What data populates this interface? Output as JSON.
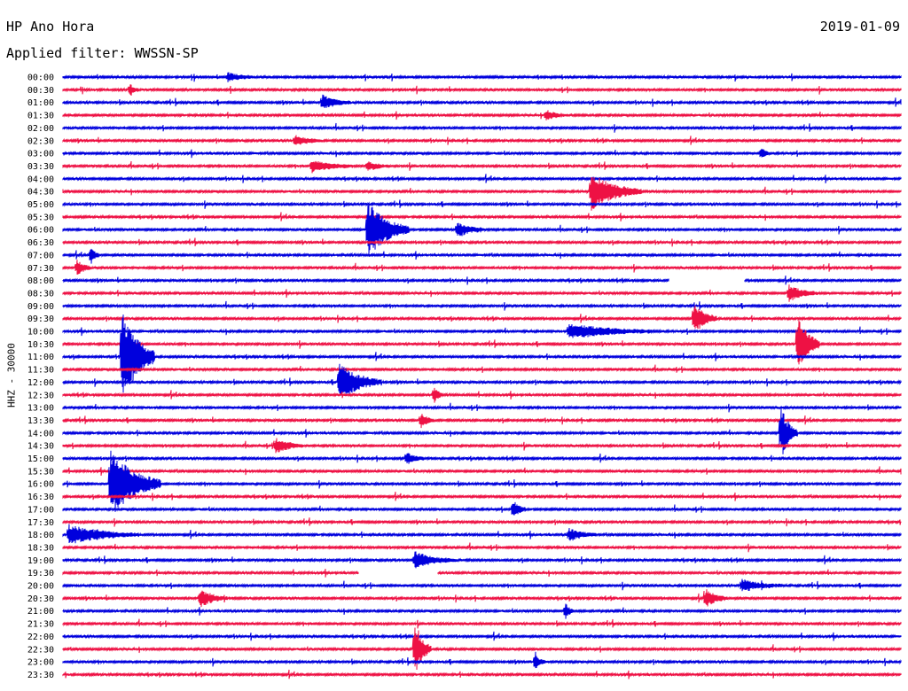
{
  "header": {
    "station": "HP Ano Hora",
    "filter": "Applied filter: WWSSN-SP",
    "date": "2019-01-09"
  },
  "chart_data": {
    "type": "line",
    "title": "HP Ano Hora",
    "subtitle": "Applied filter: WWSSN-SP",
    "date": "2019-01-09",
    "channel_label": "HHZ - 30000",
    "trace_minutes": 30,
    "colors": [
      "#0000dd",
      "#ee1144"
    ],
    "rows": [
      "00:00",
      "00:30",
      "01:00",
      "01:30",
      "02:00",
      "02:30",
      "03:00",
      "03:30",
      "04:00",
      "04:30",
      "05:00",
      "05:30",
      "06:00",
      "06:30",
      "07:00",
      "07:30",
      "08:00",
      "08:30",
      "09:00",
      "09:30",
      "10:00",
      "10:30",
      "11:00",
      "11:30",
      "12:00",
      "12:30",
      "13:00",
      "13:30",
      "14:00",
      "14:30",
      "15:00",
      "15:30",
      "16:00",
      "16:30",
      "17:00",
      "17:30",
      "18:00",
      "18:30",
      "19:00",
      "19:30",
      "20:00",
      "20:30",
      "21:00",
      "21:30",
      "22:00",
      "22:30",
      "23:00",
      "23:30"
    ],
    "data_gaps": [
      {
        "row": "08:00",
        "from_min": 21.7,
        "to_min": 24.4
      },
      {
        "row": "19:30",
        "from_min": 10.6,
        "to_min": 13.4
      }
    ],
    "events": [
      {
        "row": "00:00",
        "at_min": 5.9,
        "amp": 0.3,
        "dur": 1.0
      },
      {
        "row": "00:30",
        "at_min": 2.4,
        "amp": 0.4,
        "dur": 0.3
      },
      {
        "row": "01:00",
        "at_min": 9.3,
        "amp": 0.45,
        "dur": 1.0
      },
      {
        "row": "01:30",
        "at_min": 17.3,
        "amp": 0.3,
        "dur": 0.8
      },
      {
        "row": "02:30",
        "at_min": 8.3,
        "amp": 0.35,
        "dur": 1.0
      },
      {
        "row": "03:00",
        "at_min": 25.0,
        "amp": 0.4,
        "dur": 0.3
      },
      {
        "row": "03:30",
        "at_min": 8.9,
        "amp": 0.4,
        "dur": 1.5
      },
      {
        "row": "03:30",
        "at_min": 10.9,
        "amp": 0.3,
        "dur": 0.8
      },
      {
        "row": "04:30",
        "at_min": 18.9,
        "amp": 1.2,
        "dur": 1.8
      },
      {
        "row": "06:00",
        "at_min": 10.9,
        "amp": 1.8,
        "dur": 1.5
      },
      {
        "row": "06:00",
        "at_min": 14.1,
        "amp": 0.5,
        "dur": 1.0
      },
      {
        "row": "07:00",
        "at_min": 1.0,
        "amp": 0.6,
        "dur": 0.3
      },
      {
        "row": "07:30",
        "at_min": 0.5,
        "amp": 0.5,
        "dur": 0.5
      },
      {
        "row": "08:30",
        "at_min": 26.0,
        "amp": 0.5,
        "dur": 1.0
      },
      {
        "row": "09:30",
        "at_min": 22.6,
        "amp": 1.0,
        "dur": 0.8
      },
      {
        "row": "10:00",
        "at_min": 18.1,
        "amp": 0.5,
        "dur": 3.0
      },
      {
        "row": "10:30",
        "at_min": 26.3,
        "amp": 1.8,
        "dur": 0.8
      },
      {
        "row": "11:00",
        "at_min": 2.1,
        "amp": 3.0,
        "dur": 1.2
      },
      {
        "row": "12:00",
        "at_min": 9.9,
        "amp": 1.2,
        "dur": 1.5
      },
      {
        "row": "12:30",
        "at_min": 13.3,
        "amp": 0.5,
        "dur": 0.3
      },
      {
        "row": "13:30",
        "at_min": 12.8,
        "amp": 0.5,
        "dur": 0.5
      },
      {
        "row": "14:00",
        "at_min": 25.7,
        "amp": 1.8,
        "dur": 0.6
      },
      {
        "row": "14:30",
        "at_min": 7.6,
        "amp": 0.5,
        "dur": 1.0
      },
      {
        "row": "15:00",
        "at_min": 12.3,
        "amp": 0.4,
        "dur": 0.6
      },
      {
        "row": "16:00",
        "at_min": 1.7,
        "amp": 2.2,
        "dur": 1.8
      },
      {
        "row": "17:00",
        "at_min": 16.1,
        "amp": 0.6,
        "dur": 0.5
      },
      {
        "row": "18:00",
        "at_min": 0.2,
        "amp": 0.6,
        "dur": 2.5
      },
      {
        "row": "18:00",
        "at_min": 18.1,
        "amp": 0.4,
        "dur": 1.0
      },
      {
        "row": "19:00",
        "at_min": 12.6,
        "amp": 0.5,
        "dur": 1.5
      },
      {
        "row": "20:30",
        "at_min": 4.9,
        "amp": 0.6,
        "dur": 1.0
      },
      {
        "row": "20:30",
        "at_min": 23.0,
        "amp": 0.6,
        "dur": 0.8
      },
      {
        "row": "20:00",
        "at_min": 24.3,
        "amp": 0.4,
        "dur": 1.5
      },
      {
        "row": "21:00",
        "at_min": 18.0,
        "amp": 0.5,
        "dur": 0.3
      },
      {
        "row": "22:30",
        "at_min": 12.6,
        "amp": 1.6,
        "dur": 0.6
      },
      {
        "row": "23:00",
        "at_min": 16.9,
        "amp": 0.5,
        "dur": 0.4
      }
    ]
  }
}
